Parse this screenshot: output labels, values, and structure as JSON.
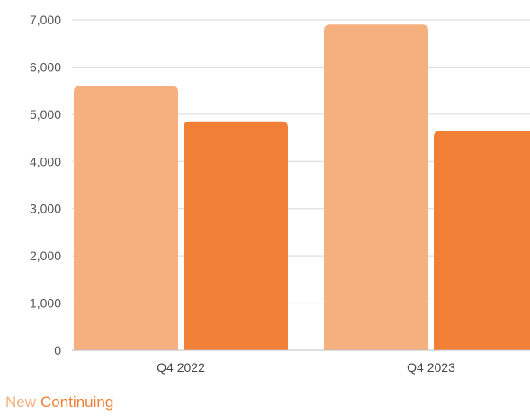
{
  "chart_data": {
    "type": "bar",
    "categories": [
      "Q4 2022",
      "Q4 2023"
    ],
    "series": [
      {
        "name": "New",
        "values": [
          5600,
          6900
        ],
        "color": "#f6b07f"
      },
      {
        "name": "Continuing",
        "values": [
          4850,
          4650
        ],
        "color": "#f17f35"
      }
    ],
    "ylim": [
      0,
      7000
    ],
    "yticks": [
      "0",
      "1,000",
      "2,000",
      "3,000",
      "4,000",
      "5,000",
      "6,000",
      "7,000"
    ],
    "grid": true,
    "legend_position": "bottom-left"
  }
}
